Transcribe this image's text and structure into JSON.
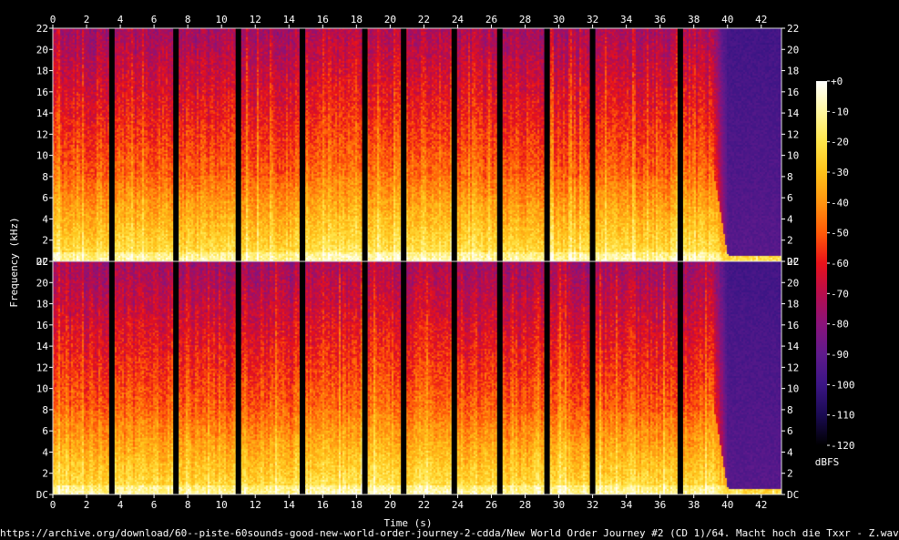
{
  "chart_data": {
    "type": "heatmap",
    "title": "",
    "xlabel": "Time (s)",
    "ylabel": "Frequency (kHz)",
    "x_ticks": [
      0,
      2,
      4,
      6,
      8,
      10,
      12,
      14,
      16,
      18,
      20,
      22,
      24,
      26,
      28,
      30,
      32,
      34,
      36,
      38,
      40,
      42
    ],
    "xlim": [
      0,
      43.2
    ],
    "y_ticks": [
      {
        "value": 0,
        "label": "DC"
      },
      {
        "value": 2,
        "label": "2"
      },
      {
        "value": 4,
        "label": "4"
      },
      {
        "value": 6,
        "label": "6"
      },
      {
        "value": 8,
        "label": "8"
      },
      {
        "value": 10,
        "label": "10"
      },
      {
        "value": 12,
        "label": "12"
      },
      {
        "value": 14,
        "label": "14"
      },
      {
        "value": 16,
        "label": "16"
      },
      {
        "value": 18,
        "label": "18"
      },
      {
        "value": 20,
        "label": "20"
      },
      {
        "value": 22,
        "label": "22"
      }
    ],
    "ylim": [
      0,
      22
    ],
    "channels": 2,
    "colorbar": {
      "label": "dBFS",
      "range": [
        -120,
        0
      ],
      "ticks": [
        {
          "value": 0,
          "label": "+0"
        },
        {
          "value": -10,
          "label": "-10"
        },
        {
          "value": -20,
          "label": "-20"
        },
        {
          "value": -30,
          "label": "-30"
        },
        {
          "value": -40,
          "label": "-40"
        },
        {
          "value": -50,
          "label": "-50"
        },
        {
          "value": -60,
          "label": "-60"
        },
        {
          "value": -70,
          "label": "-70"
        },
        {
          "value": -80,
          "label": "-80"
        },
        {
          "value": -90,
          "label": "-90"
        },
        {
          "value": -100,
          "label": "-100"
        },
        {
          "value": -110,
          "label": "-110"
        },
        {
          "value": -120,
          "label": "-120"
        }
      ],
      "colors": [
        "#ffffff",
        "#fff7a0",
        "#ffe54a",
        "#ffc21a",
        "#ff9410",
        "#ff5a08",
        "#e8121a",
        "#b80d4c",
        "#8a137a",
        "#5f1a8c",
        "#3b1585",
        "#1a0a52",
        "#000000"
      ]
    },
    "silence_gaps_s": [
      3.5,
      7.3,
      11.0,
      14.8,
      18.5,
      20.8,
      23.8,
      26.5,
      29.3,
      32.0,
      37.2
    ],
    "fade_out_start_s": 39.0
  },
  "source": {
    "caption": "https://archive.org/download/60--piste-60sounds-good-new-world-order-journey-2-cdda/New World Order Journey #2 (CD 1)/64. Macht hoch die Txxr - Z.wav"
  }
}
